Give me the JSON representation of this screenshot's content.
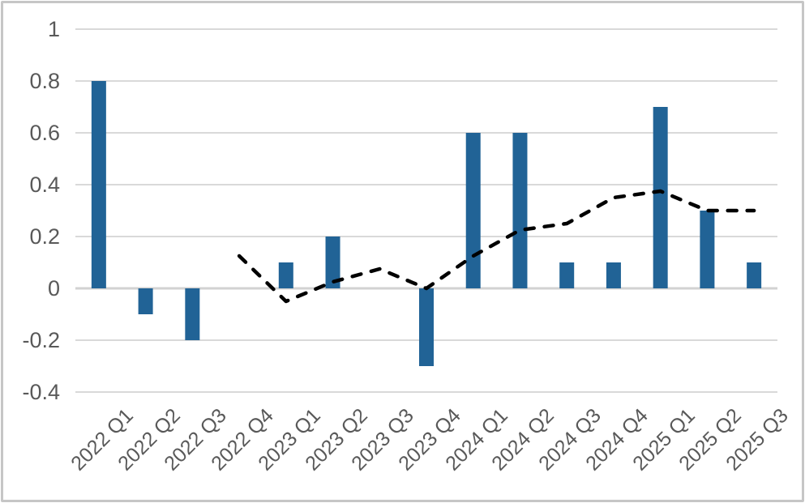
{
  "chart_data": {
    "type": "bar",
    "categories": [
      "2022 Q1",
      "2022 Q2",
      "2022 Q3",
      "2022 Q4",
      "2023 Q1",
      "2023 Q2",
      "2023 Q3",
      "2023 Q4",
      "2024 Q1",
      "2024 Q2",
      "2024 Q3",
      "2024 Q4",
      "2025 Q1",
      "2025 Q2",
      "2025 Q3"
    ],
    "series": [
      {
        "name": "bars",
        "kind": "bar",
        "color": "#216396",
        "values": [
          0.8,
          -0.1,
          -0.2,
          0,
          0.1,
          0.2,
          0,
          -0.3,
          0.6,
          0.6,
          0.1,
          0.1,
          0.7,
          0.3,
          0.1
        ]
      },
      {
        "name": "dashed-line",
        "kind": "line",
        "line_style": "dashed",
        "color": "#000000",
        "values": [
          null,
          null,
          null,
          0.125,
          -0.05,
          0.025,
          0.075,
          0,
          0.125,
          0.225,
          0.25,
          0.35,
          0.375,
          0.3,
          0.3
        ]
      }
    ],
    "title": "",
    "xlabel": "",
    "ylabel": "",
    "ylim": [
      -0.4,
      1
    ],
    "yticks": [
      1,
      0.8,
      0.6,
      0.4,
      0.2,
      0,
      -0.2,
      -0.4
    ],
    "ytick_labels": [
      "1",
      "0.8",
      "0.6",
      "0.4",
      "0.2",
      "0",
      "-0.2",
      "-0.4"
    ],
    "grid": true,
    "legend": false
  },
  "style": {
    "bar_color": "#216396",
    "line_color": "#000000",
    "gridline_color": "#D9D9D9",
    "zero_line_color": "#D2D2D2",
    "tick_label_color": "#595959",
    "frame_border_color": "#C6C6C6",
    "background": "#FFFFFF"
  }
}
